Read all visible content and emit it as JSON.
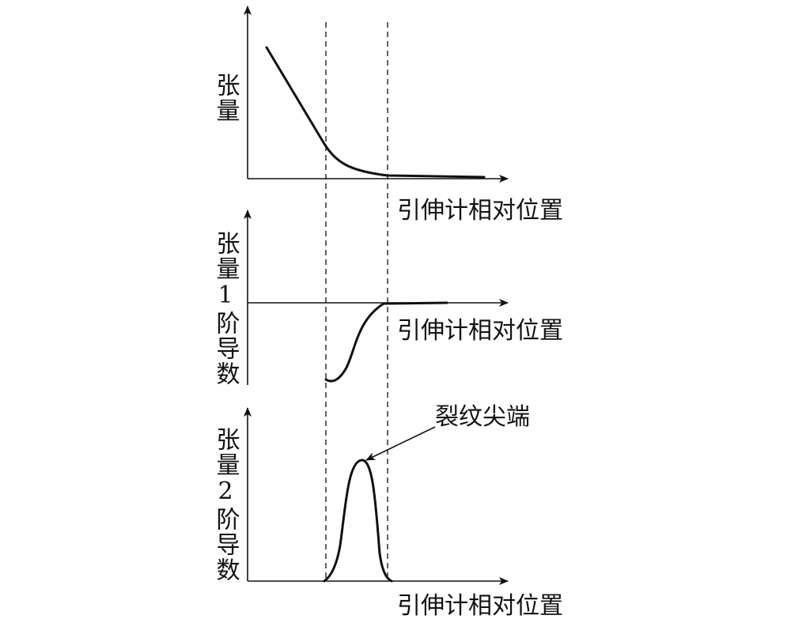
{
  "panels": [
    {
      "y_label": "张量",
      "x_label": "引伸计相对位置"
    },
    {
      "y_label": "张量1阶导数",
      "x_label": "引伸计相对位置"
    },
    {
      "y_label": "张量2阶导数",
      "x_label": "引伸计相对位置"
    }
  ],
  "annotation": "裂纹尖端"
}
